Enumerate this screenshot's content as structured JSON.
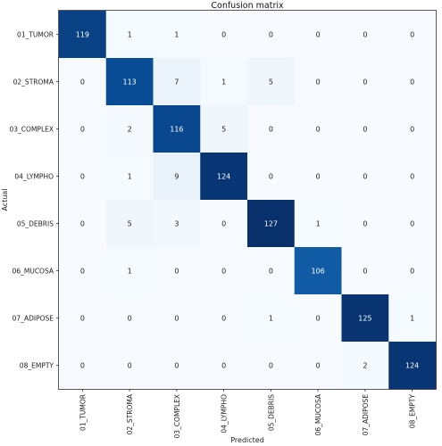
{
  "chart_data": {
    "type": "heatmap",
    "title": "Confusion matrix",
    "xlabel": "Predicted",
    "ylabel": "Actual",
    "categories": [
      "01_TUMOR",
      "02_STROMA",
      "03_COMPLEX",
      "04_LYMPHO",
      "05_DEBRIS",
      "06_MUCOSA",
      "07_ADIPOSE",
      "08_EMPTY"
    ],
    "matrix": [
      [
        119,
        1,
        1,
        0,
        0,
        0,
        0,
        0
      ],
      [
        0,
        113,
        7,
        1,
        5,
        0,
        0,
        0
      ],
      [
        0,
        2,
        116,
        5,
        0,
        0,
        0,
        0
      ],
      [
        0,
        1,
        9,
        124,
        0,
        0,
        0,
        0
      ],
      [
        0,
        5,
        3,
        0,
        127,
        1,
        0,
        0
      ],
      [
        0,
        1,
        0,
        0,
        0,
        106,
        0,
        0
      ],
      [
        0,
        0,
        0,
        0,
        1,
        0,
        125,
        1
      ],
      [
        0,
        0,
        0,
        0,
        0,
        0,
        2,
        124
      ]
    ],
    "vmin": 0,
    "vmax": 127,
    "colormap": "Blues",
    "grid": false
  }
}
